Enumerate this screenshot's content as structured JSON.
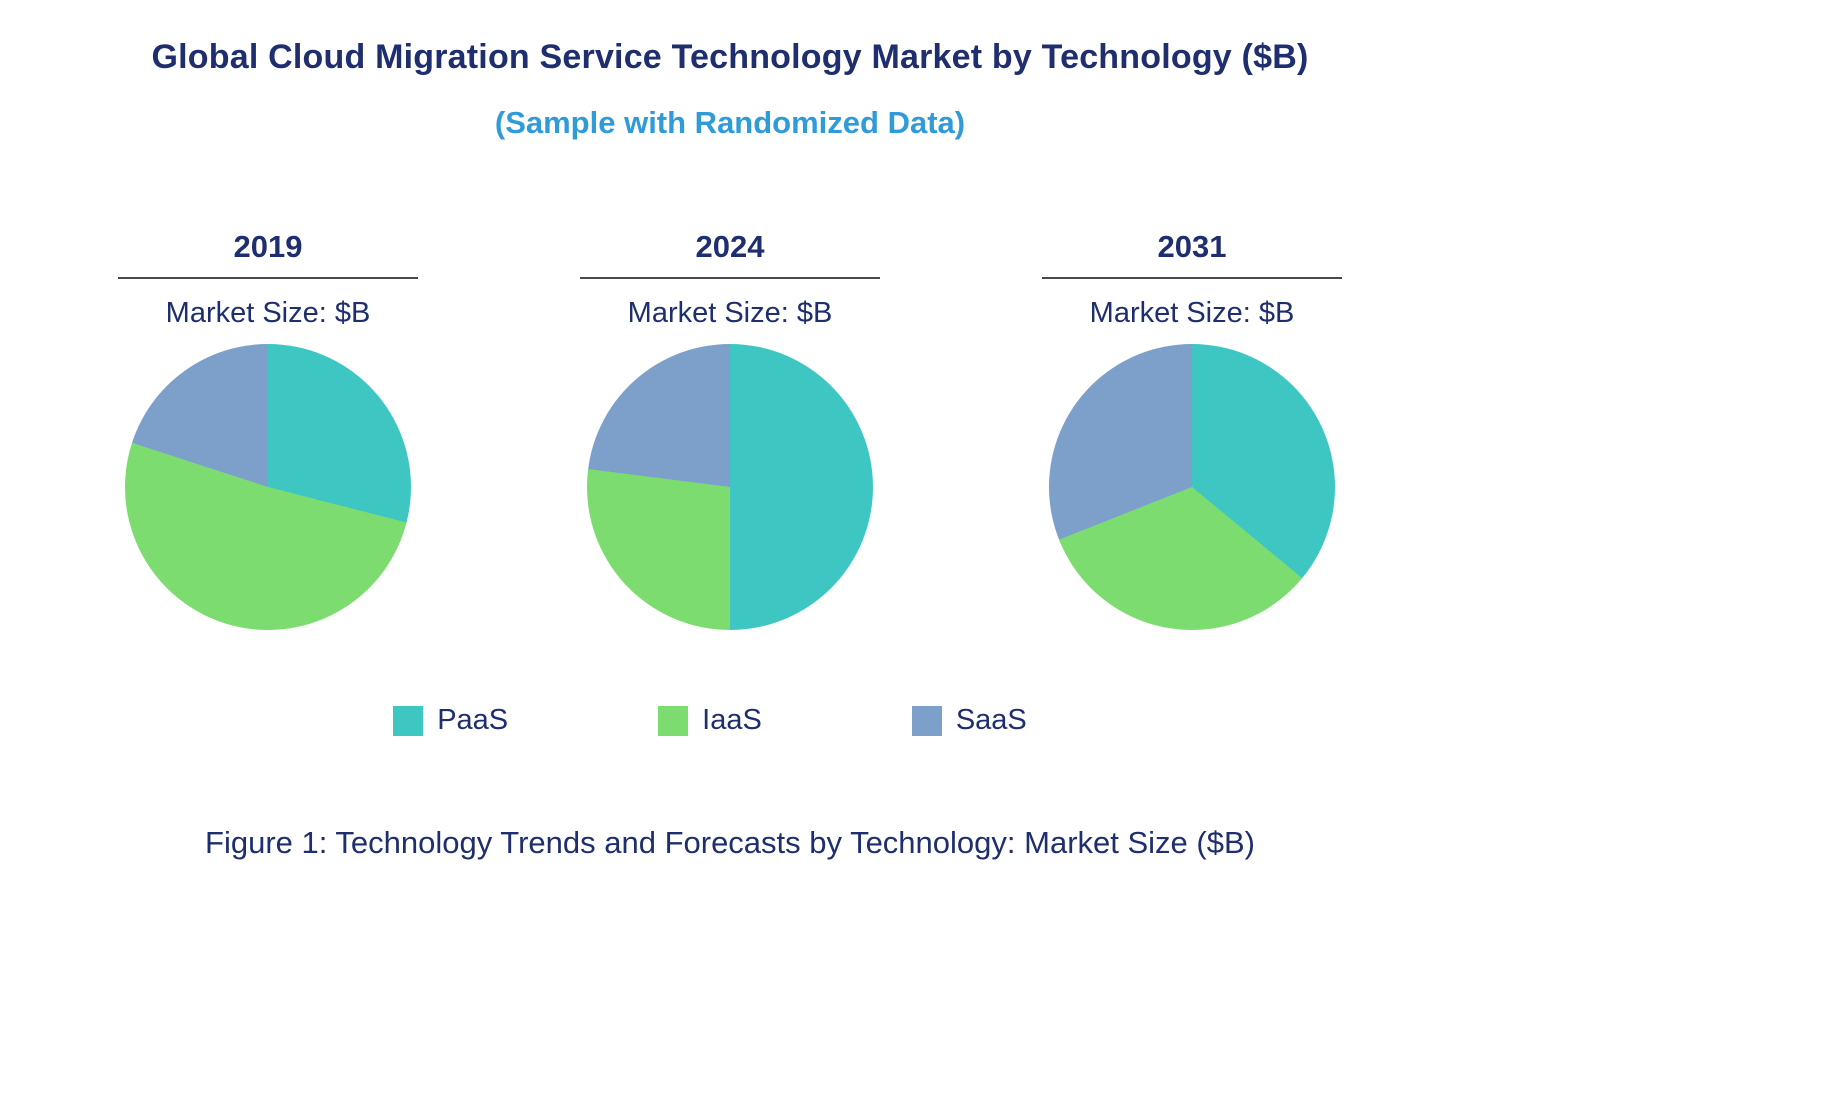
{
  "header": {
    "title": "Global Cloud Migration Service Technology Market by Technology ($B)",
    "subtitle": "(Sample with Randomized Data)"
  },
  "legend": {
    "items": [
      {
        "label": "PaaS",
        "color": "#3ec7c2"
      },
      {
        "label": "IaaS",
        "color": "#7ddc6f"
      },
      {
        "label": "SaaS",
        "color": "#7da0ca"
      }
    ]
  },
  "caption": "Figure 1: Technology Trends and Forecasts by Technology: Market Size ($B)",
  "chart_data": [
    {
      "type": "pie",
      "title": "2019",
      "unit_label": "Market Size: $B",
      "labels": [
        "PaaS",
        "IaaS",
        "SaaS"
      ],
      "values_pct": [
        29,
        51,
        20
      ],
      "start_angle_deg": 0,
      "direction": "clockwise"
    },
    {
      "type": "pie",
      "title": "2024",
      "unit_label": "Market Size: $B",
      "labels": [
        "PaaS",
        "IaaS",
        "SaaS"
      ],
      "values_pct": [
        50,
        27,
        23
      ],
      "start_angle_deg": 0,
      "direction": "clockwise"
    },
    {
      "type": "pie",
      "title": "2031",
      "unit_label": "Market Size: $B",
      "labels": [
        "PaaS",
        "IaaS",
        "SaaS"
      ],
      "values_pct": [
        36,
        33,
        31
      ],
      "start_angle_deg": 0,
      "direction": "clockwise"
    }
  ]
}
